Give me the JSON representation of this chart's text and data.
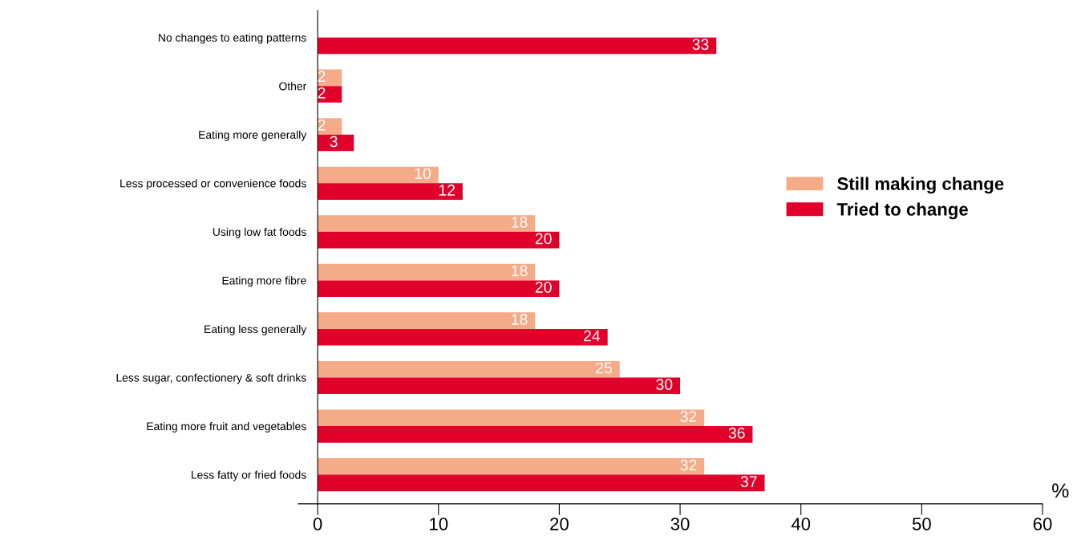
{
  "chart_data": {
    "type": "bar",
    "orientation": "horizontal",
    "categories": [
      "No changes to eating patterns",
      "Other",
      "Eating more generally",
      "Less processed or convenience foods",
      "Using low fat foods",
      "Eating more fibre",
      "Eating less generally",
      "Less sugar, confectionery & soft drinks",
      "Eating more fruit and vegetables",
      "Less fatty or fried foods"
    ],
    "series": [
      {
        "name": "Still making change",
        "color": "#f5aa88",
        "values": [
          null,
          2,
          2,
          10,
          18,
          18,
          18,
          25,
          32,
          32
        ]
      },
      {
        "name": "Tried to change",
        "color": "#e0002a",
        "values": [
          33,
          2,
          3,
          12,
          20,
          20,
          24,
          30,
          36,
          37
        ]
      }
    ],
    "xlabel": "%",
    "xlim": [
      -1.6,
      60
    ],
    "xticks": [
      0,
      10,
      20,
      30,
      40,
      50,
      60
    ],
    "data_labels": true,
    "legend": "right",
    "grid": false
  }
}
